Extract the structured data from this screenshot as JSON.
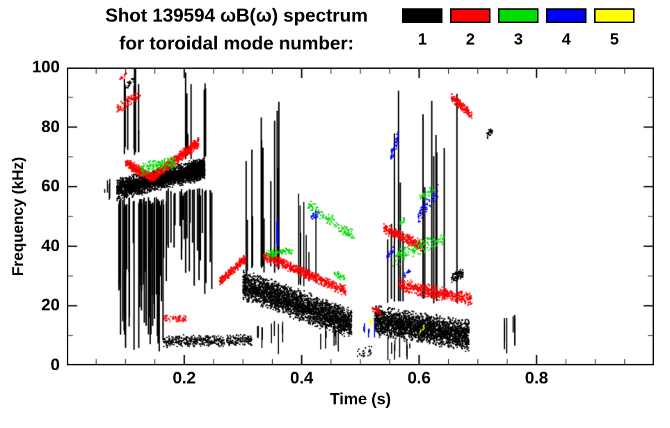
{
  "header": {
    "title_line1": "Shot 139594 ωB(ω) spectrum",
    "title_line2": "for toroidal mode number:"
  },
  "legend": {
    "items": [
      {
        "label": "1",
        "color": "#000000"
      },
      {
        "label": "2",
        "color": "#ff0000"
      },
      {
        "label": "3",
        "color": "#00dd00"
      },
      {
        "label": "4",
        "color": "#0000ff"
      },
      {
        "label": "5",
        "color": "#ffff00"
      }
    ]
  },
  "chart_data": {
    "type": "scatter",
    "title": "Shot 139594 ωB(ω) spectrum for toroidal mode number",
    "xlabel": "Time (s)",
    "ylabel": "Frequency (kHz)",
    "xlim": [
      0.0,
      1.0
    ],
    "ylim": [
      0,
      100
    ],
    "xticks": [
      0.2,
      0.4,
      0.6,
      0.8
    ],
    "xtick_labels": [
      "0.2",
      "0.4",
      "0.6",
      "0.8"
    ],
    "x_minor_step": 0.05,
    "yticks": [
      0,
      20,
      40,
      60,
      80,
      100
    ],
    "ytick_labels": [
      "0",
      "20",
      "40",
      "60",
      "80",
      "100"
    ],
    "y_minor_step": 10,
    "grid": false,
    "legend_position": "top-right",
    "series": [
      {
        "name": "n=1",
        "color": "#000000",
        "clusters": [
          {
            "style": "band",
            "t": [
              0.085,
              0.235
            ],
            "f": [
              59,
              66
            ],
            "spread": 4,
            "n": 2400
          },
          {
            "style": "band",
            "t": [
              0.1,
              0.235
            ],
            "f": [
              60,
              66
            ],
            "spread": 2,
            "n": 1400
          },
          {
            "style": "band",
            "t": [
              0.205,
              0.235
            ],
            "f": [
              64.5,
              66.5
            ],
            "spread": 3.5,
            "n": 600
          },
          {
            "style": "streak",
            "t": [
              0.088,
              0.17
            ],
            "f": [
              55,
              4
            ],
            "n": 55,
            "w": 2
          },
          {
            "style": "streak",
            "t": [
              0.17,
              0.25
            ],
            "f": [
              58,
              22
            ],
            "n": 30,
            "w": 2
          },
          {
            "style": "streak",
            "t": [
              0.095,
              0.135
            ],
            "f": [
              72,
              100
            ],
            "n": 9,
            "w": 2
          },
          {
            "style": "streak",
            "t": [
              0.2,
              0.24
            ],
            "f": [
              70,
              100
            ],
            "n": 8,
            "w": 2
          },
          {
            "style": "band",
            "t": [
              0.165,
              0.315
            ],
            "f": [
              8,
              8.5
            ],
            "spread": 2.2,
            "n": 450
          },
          {
            "style": "band",
            "t": [
              0.3,
              0.485
            ],
            "f": [
              27,
              14
            ],
            "spread": 5.5,
            "n": 3000
          },
          {
            "style": "streak",
            "t": [
              0.3,
              0.375
            ],
            "f": [
              32,
              92
            ],
            "n": 13,
            "w": 2
          },
          {
            "style": "streak",
            "t": [
              0.39,
              0.46
            ],
            "f": [
              28,
              58
            ],
            "n": 7,
            "w": 1.6
          },
          {
            "style": "streak",
            "t": [
              0.315,
              0.37
            ],
            "f": [
              14,
              2
            ],
            "n": 9,
            "w": 1.6
          },
          {
            "style": "streak",
            "t": [
              0.41,
              0.47
            ],
            "f": [
              12,
              3
            ],
            "n": 7,
            "w": 1.6
          },
          {
            "style": "band",
            "t": [
              0.525,
              0.685
            ],
            "f": [
              15,
              10
            ],
            "spread": 5.5,
            "n": 2600
          },
          {
            "style": "streak",
            "t": [
              0.53,
              0.675
            ],
            "f": [
              22,
              95
            ],
            "n": 15,
            "w": 2
          },
          {
            "style": "streak",
            "t": [
              0.53,
              0.6
            ],
            "f": [
              8,
              1
            ],
            "n": 8,
            "w": 1.6
          },
          {
            "style": "band",
            "t": [
              0.655,
              0.675
            ],
            "f": [
              29,
              31
            ],
            "spread": 2,
            "n": 90
          },
          {
            "style": "streak",
            "t": [
              0.74,
              0.765
            ],
            "f": [
              16,
              3
            ],
            "n": 6,
            "w": 1.8
          },
          {
            "style": "band",
            "t": [
              0.715,
              0.725
            ],
            "f": [
              77,
              79
            ],
            "spread": 1.6,
            "n": 35
          },
          {
            "style": "streak",
            "t": [
              0.055,
              0.078
            ],
            "f": [
              57,
              63
            ],
            "n": 4,
            "w": 1.6
          },
          {
            "style": "band",
            "t": [
              0.1,
              0.115
            ],
            "f": [
              93,
              96
            ],
            "spread": 1.5,
            "n": 25
          },
          {
            "style": "band",
            "t": [
              0.495,
              0.52
            ],
            "f": [
              4,
              5
            ],
            "spread": 2,
            "n": 25
          }
        ]
      },
      {
        "name": "n=2",
        "color": "#ff0000",
        "clusters": [
          {
            "style": "band",
            "t": [
              0.1,
              0.145
            ],
            "f": [
              68,
              63
            ],
            "spread": 1.8,
            "n": 320
          },
          {
            "style": "band",
            "t": [
              0.145,
              0.225
            ],
            "f": [
              63,
              75
            ],
            "spread": 2.0,
            "n": 650
          },
          {
            "style": "band",
            "t": [
              0.085,
              0.125
            ],
            "f": [
              86,
              91
            ],
            "spread": 2.2,
            "n": 90
          },
          {
            "style": "band",
            "t": [
              0.09,
              0.102
            ],
            "f": [
              96,
              98
            ],
            "spread": 1,
            "n": 14
          },
          {
            "style": "band",
            "t": [
              0.165,
              0.205
            ],
            "f": [
              16,
              15.5
            ],
            "spread": 1.2,
            "n": 60
          },
          {
            "style": "band",
            "t": [
              0.26,
              0.305
            ],
            "f": [
              28,
              36
            ],
            "spread": 1.8,
            "n": 240
          },
          {
            "style": "band",
            "t": [
              0.335,
              0.475
            ],
            "f": [
              37,
              25
            ],
            "spread": 2.0,
            "n": 650
          },
          {
            "style": "band",
            "t": [
              0.54,
              0.605
            ],
            "f": [
              46,
              40
            ],
            "spread": 2.0,
            "n": 300
          },
          {
            "style": "band",
            "t": [
              0.565,
              0.69
            ],
            "f": [
              27,
              22
            ],
            "spread": 2.5,
            "n": 520
          },
          {
            "style": "band",
            "t": [
              0.655,
              0.69
            ],
            "f": [
              90,
              84
            ],
            "spread": 1.8,
            "n": 160
          },
          {
            "style": "band",
            "t": [
              0.52,
              0.535
            ],
            "f": [
              19,
              18
            ],
            "spread": 1.2,
            "n": 35
          }
        ]
      },
      {
        "name": "n=3",
        "color": "#00dd00",
        "clusters": [
          {
            "style": "band",
            "t": [
              0.125,
              0.185
            ],
            "f": [
              66,
              68
            ],
            "spread": 2.5,
            "n": 140
          },
          {
            "style": "band",
            "t": [
              0.34,
              0.385
            ],
            "f": [
              37,
              39
            ],
            "spread": 1.6,
            "n": 85
          },
          {
            "style": "band",
            "t": [
              0.41,
              0.49
            ],
            "f": [
              54,
              43
            ],
            "spread": 2.5,
            "n": 130
          },
          {
            "style": "band",
            "t": [
              0.455,
              0.475
            ],
            "f": [
              31,
              29
            ],
            "spread": 1.2,
            "n": 35
          },
          {
            "style": "band",
            "t": [
              0.555,
              0.645
            ],
            "f": [
              36,
              43
            ],
            "spread": 3,
            "n": 160
          },
          {
            "style": "band",
            "t": [
              0.6,
              0.625
            ],
            "f": [
              56,
              59
            ],
            "spread": 1.6,
            "n": 45
          },
          {
            "style": "band",
            "t": [
              0.565,
              0.575
            ],
            "f": [
              47,
              49
            ],
            "spread": 1,
            "n": 18
          }
        ]
      },
      {
        "name": "n=4",
        "color": "#0000ff",
        "clusters": [
          {
            "style": "streak",
            "t": [
              0.345,
              0.36
            ],
            "f": [
              40,
              50
            ],
            "n": 4,
            "w": 1.6
          },
          {
            "style": "band",
            "t": [
              0.415,
              0.43
            ],
            "f": [
              49,
              51
            ],
            "spread": 1.5,
            "n": 22
          },
          {
            "style": "streak",
            "t": [
              0.505,
              0.525
            ],
            "f": [
              10,
              18
            ],
            "n": 5,
            "w": 1.6
          },
          {
            "style": "band",
            "t": [
              0.552,
              0.565
            ],
            "f": [
              70,
              77
            ],
            "spread": 2.5,
            "n": 55
          },
          {
            "style": "band",
            "t": [
              0.598,
              0.632
            ],
            "f": [
              50,
              58
            ],
            "spread": 3,
            "n": 65
          },
          {
            "style": "band",
            "t": [
              0.545,
              0.558
            ],
            "f": [
              36,
              39
            ],
            "spread": 1.5,
            "n": 22
          },
          {
            "style": "band",
            "t": [
              0.575,
              0.585
            ],
            "f": [
              30,
              32
            ],
            "spread": 1,
            "n": 14
          }
        ]
      },
      {
        "name": "n=5",
        "color": "#ffff00",
        "clusters": [
          {
            "style": "band",
            "t": [
              0.515,
              0.525
            ],
            "f": [
              14,
              16
            ],
            "spread": 1,
            "n": 12
          },
          {
            "style": "band",
            "t": [
              0.602,
              0.61
            ],
            "f": [
              12,
              13
            ],
            "spread": 1,
            "n": 8
          }
        ]
      }
    ]
  }
}
